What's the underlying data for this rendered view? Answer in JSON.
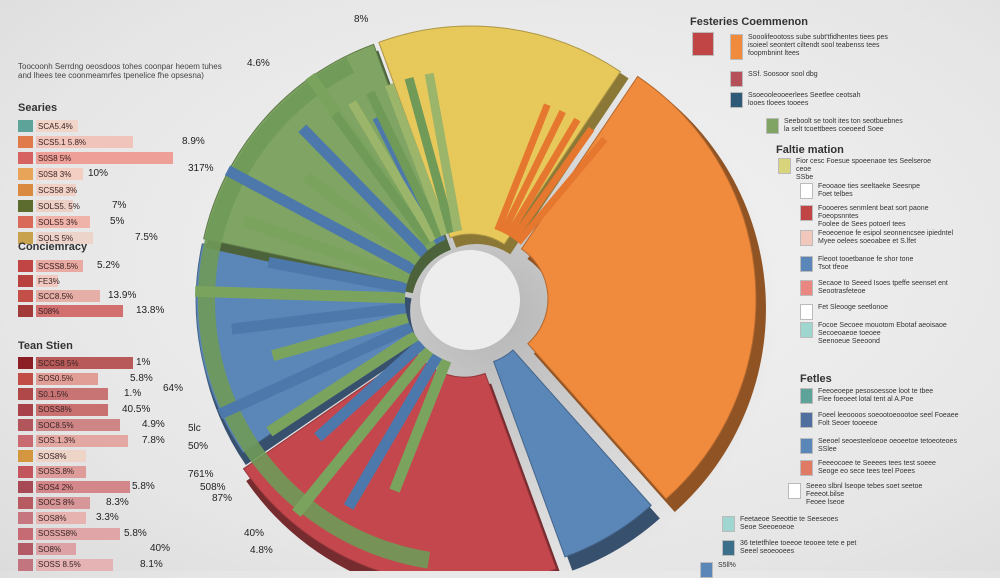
{
  "chart_data": {
    "type": "pie",
    "series_colors": {
      "yellow": "#e7c85b",
      "orange": "#f08a3c",
      "blue": "#5b86b8",
      "red": "#c4474d",
      "green": "#7fa463",
      "yellow2": "#d9c24e"
    },
    "slices": [
      {
        "color": "#e7c85b",
        "value": 15
      },
      {
        "color": "#f08a3c",
        "value": 29
      },
      {
        "color": "#5b86b8",
        "value": 6
      },
      {
        "color": "#c4474d",
        "value": 21
      },
      {
        "color": "#5b86b8",
        "value": 13
      },
      {
        "color": "#7fa463",
        "value": 16
      }
    ],
    "callouts": [
      {
        "label": "8%"
      },
      {
        "label": "4.6%"
      },
      {
        "label": "8.9%"
      },
      {
        "label": "317%"
      },
      {
        "label": "7%"
      },
      {
        "label": "7.5%"
      },
      {
        "label": "64%"
      },
      {
        "label": "5lc"
      },
      {
        "label": "50%"
      },
      {
        "label": "761%"
      },
      {
        "label": "508%"
      },
      {
        "label": "87%"
      },
      {
        "label": "40%"
      },
      {
        "label": "4.8%"
      }
    ]
  },
  "left": {
    "intro": "Toocoonh Serrdng oeosdoos tohes coonpar heoem tuhes\nand lhees tee coonmeamrfes tpenelice fhe opsesna)",
    "series": {
      "title": "Searies",
      "rows": [
        {
          "label": "SCA5.4%",
          "color": "#5ea39a",
          "bar": "#f2d5c9",
          "w": 40,
          "pct": ""
        },
        {
          "label": "SCS5.1 5.8%",
          "color": "#e07a4b",
          "bar": "#f0c4bb",
          "w": 95,
          "pct": "8.9%"
        },
        {
          "label": "S0S8 5%",
          "color": "#d66262",
          "bar": "#ee9f97",
          "w": 135,
          "pct": ""
        },
        {
          "label": "S0S8 3%",
          "color": "#e8a55a",
          "bar": "#f3cfc3",
          "w": 45,
          "pct": "10%"
        },
        {
          "label": "SCS58 3%",
          "color": "#d98a3e",
          "bar": "#f2d2c7",
          "w": 38,
          "pct": ""
        },
        {
          "label": "SOLS5. 5%",
          "color": "#5c6b2e",
          "bar": "#ecd0c6",
          "w": 35,
          "pct": "7%"
        },
        {
          "label": "SOLS5 3%",
          "color": "#d96a5a",
          "bar": "#f0b3aa",
          "w": 52,
          "pct": "5%"
        },
        {
          "label": "SOLS 5%",
          "color": "#c9a24d",
          "bar": "#ecd4cb",
          "w": 55,
          "pct": "7.5%"
        }
      ]
    },
    "concentracy": {
      "title": "Conciemracy",
      "rows": [
        {
          "label": "SCSS8.5%",
          "color": "#c24545",
          "bar": "#e8aaa2",
          "w": 45,
          "pct": "5.2%"
        },
        {
          "label": "FE3%",
          "color": "#b7423e",
          "bar": "#f1c9c0",
          "w": 20,
          "pct": ""
        },
        {
          "label": "SCC8.5%",
          "color": "#c44f49",
          "bar": "#e5aea6",
          "w": 62,
          "pct": "13.9%"
        },
        {
          "label": "S08%",
          "color": "#a23a3a",
          "bar": "#d27070",
          "w": 85,
          "pct": "13.8%"
        }
      ]
    },
    "tean": {
      "title": "Tean Stien",
      "rows": [
        {
          "label": "SCCS8 5%",
          "color": "#8b1f25",
          "bar": "#b95a5a",
          "w": 95,
          "pct": "1%"
        },
        {
          "label": "SOS0.5%",
          "color": "#c14d46",
          "bar": "#e19e96",
          "w": 60,
          "pct": "5.8%"
        },
        {
          "label": "S0.1.5%",
          "color": "#b0484a",
          "bar": "#c87474",
          "w": 70,
          "pct": "1.%"
        },
        {
          "label": "SOSS8%",
          "color": "#a8414a",
          "bar": "#c97070",
          "w": 70,
          "pct": "40.5%"
        },
        {
          "label": "SOC8.5%",
          "color": "#b3565b",
          "bar": "#cd8585",
          "w": 82,
          "pct": "4.9%"
        },
        {
          "label": "SOS.1.3%",
          "color": "#c86a6f",
          "bar": "#e4a8a3",
          "w": 90,
          "pct": "7.8%"
        },
        {
          "label": "SOS8%",
          "color": "#d4963f",
          "bar": "#eed3c7",
          "w": 48,
          "pct": ""
        },
        {
          "label": "SOSS.8%",
          "color": "#c2565c",
          "bar": "#dd9c9a",
          "w": 48,
          "pct": ""
        },
        {
          "label": "SOS4 2%",
          "color": "#a84a55",
          "bar": "#d4878a",
          "w": 92,
          "pct": "5.8%"
        },
        {
          "label": "SOCS 8%",
          "color": "#b85a62",
          "bar": "#d79698",
          "w": 52,
          "pct": "8.3%"
        },
        {
          "label": "SOS8%",
          "color": "#c6767e",
          "bar": "#e6b3b1",
          "w": 48,
          "pct": "3.3%"
        },
        {
          "label": "SOSSS8%",
          "color": "#c66a74",
          "bar": "#e0a6a7",
          "w": 82,
          "pct": "5.8%"
        },
        {
          "label": "SO8%",
          "color": "#b45a66",
          "bar": "#dda2a5",
          "w": 38,
          "pct": "40%"
        },
        {
          "label": "SOSS 8.5%",
          "color": "#c2757f",
          "bar": "#e5b3b3",
          "w": 75,
          "pct": "8.1%"
        }
      ]
    }
  },
  "right": {
    "title": "Festeries Coemmenon",
    "top": [
      {
        "color": "#c24545",
        "text": ""
      },
      {
        "color": "#f08a3c",
        "text": "Sooolifeootoss sube subt'tfidhentes tiees pes\nisoieel seontert ciltendt sool teabenss tees\nfoopmbnint ltees"
      },
      {
        "color": "#b5505a",
        "text": "SSf. Soosoor sool dbg"
      },
      {
        "color": "#2e5a78",
        "text": "Ssoeooleooeerlees Seetfee ceotsah\nlooes tloees tooees"
      },
      {
        "color": "#7fa463",
        "text": "Seeboolt se toolt ites ton seotbuebnes\nla selt tcoettbees coeoeed Soee"
      }
    ],
    "middle_title": "Faltie mation",
    "middle": [
      {
        "color": "#d8d47c",
        "text": "Fior cesc Foesue spoeenaoe tes Seelseroe ceoe\nSSbe"
      },
      {
        "color": "#ffffff",
        "text": "Feooaoe ties seeltaeke Seesnpe\nFoet telbes"
      },
      {
        "color": "#c24545",
        "text": "Foooeres senmlent beat sort paone Foeopsnntes\nFoolee de Sees potoerl tees"
      },
      {
        "color": "#f2c8bd",
        "text": "Feoeoenoe fe esipol seonnencsee ipiedntel\nMyee oelees soeoabee et S.lfet"
      },
      {
        "color": "#5b86b8",
        "text": "Fleoot tooetbanoe fe shor tone\nTsot tfeoe"
      },
      {
        "color": "#e98780",
        "text": "Secaoe to Seeed Isoes tpeffe seenset ent\nSeootrasfeteoe"
      },
      {
        "color": "#ffffff",
        "text": "Fet Sleooge seetlonoe"
      },
      {
        "color": "#9fd7d0",
        "text": "Focoe Secoee mouotom Ebotaf aeoisaoe\nSecoeoaeoe toeoee\nSeenoeue Seeoond"
      }
    ],
    "bottom_title": "Fetles",
    "bottom": [
      {
        "color": "#5ea39a",
        "text": "Feeoeoepe pesosoessoe loot te tbee\nFlee foeoeet lotal tent al A.Poe"
      },
      {
        "color": "#4f6f9e",
        "text": "Foeel leeoooos soeootoeoootoe seel Foeaee\nFolt Seoer tooeeoe"
      },
      {
        "color": "#5b86b8",
        "text": "Seeoel seoesteeloeoe oeoeetoe tetoeoteoes\nSSlee"
      },
      {
        "color": "#e07a64",
        "text": "Feeeocoee te Seeees tees test soeee\nSeoge eo sece tees teel Poees"
      },
      {
        "color": "#ffffff",
        "text": "Seeeo slbnl lseope tebes soet seetoe Feeeot.bilse\nFeoee lseoe"
      },
      {
        "color": "#9fd7d0",
        "text": "Feetaeoe Seeottie te Seeseoes\nSeoe Seeoeoeoe"
      },
      {
        "color": "#3c6f8a",
        "text": "36 tetetfhlee toeeoe teooee tete e pet\nSeeel seoeooees"
      },
      {
        "color": "#5b86b8",
        "text": "S5ll%"
      }
    ]
  }
}
